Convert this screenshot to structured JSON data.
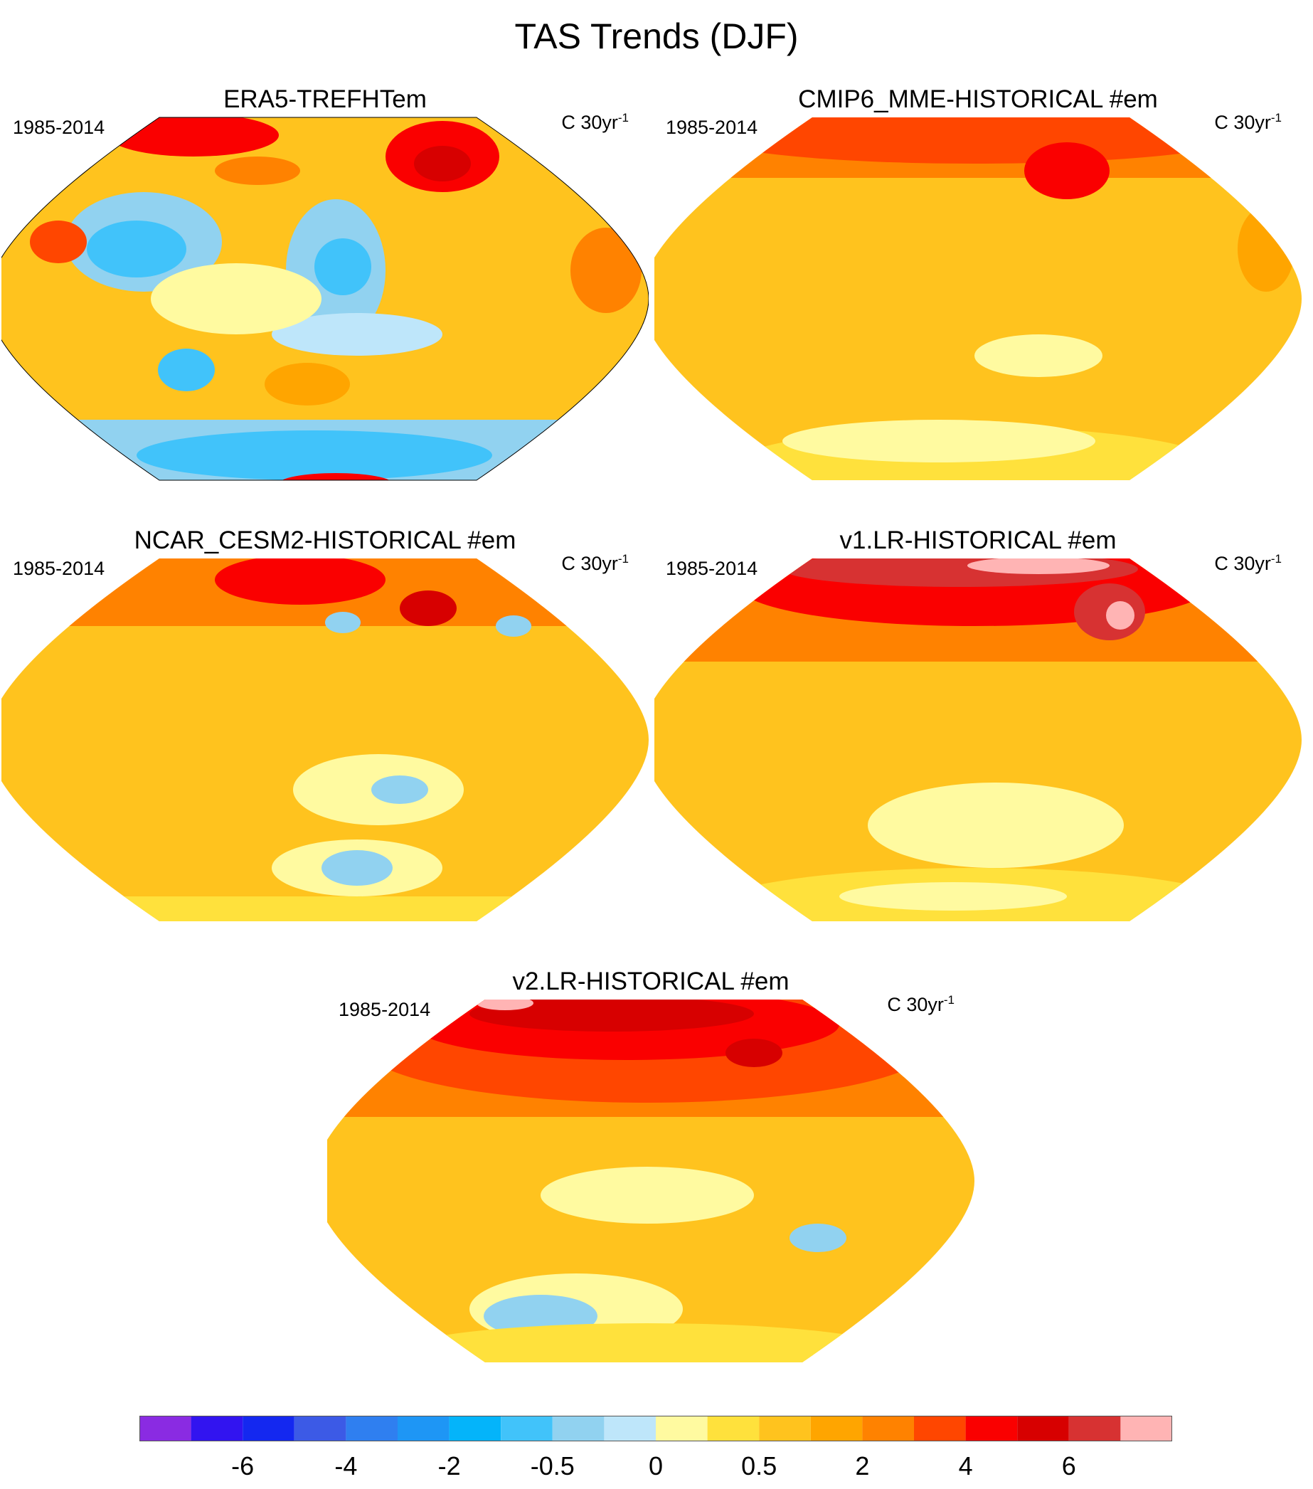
{
  "figure": {
    "title": "TAS Trends (DJF)"
  },
  "panels": [
    {
      "title": "ERA5-TREFHTem",
      "period": "1985-2014",
      "units": "C 30yr",
      "units_exp": "-1"
    },
    {
      "title": "CMIP6_MME-HISTORICAL  #em",
      "period": "1985-2014",
      "units": "C 30yr",
      "units_exp": "-1"
    },
    {
      "title": "NCAR_CESM2-HISTORICAL  #em",
      "period": "1985-2014",
      "units": "C 30yr",
      "units_exp": "-1"
    },
    {
      "title": "v1.LR-HISTORICAL  #em",
      "period": "1985-2014",
      "units": "C 30yr",
      "units_exp": "-1"
    },
    {
      "title": "v2.LR-HISTORICAL  #em",
      "period": "1985-2014",
      "units": "C 30yr",
      "units_exp": "-1"
    }
  ],
  "colorbar": {
    "colors": [
      "#8a2be2",
      "#3214f0",
      "#1428f0",
      "#3c5ae6",
      "#2f7ff0",
      "#1e96f5",
      "#04b4fa",
      "#41c3fa",
      "#91d2f0",
      "#bee6fa",
      "#fffaa0",
      "#ffe13c",
      "#ffc31e",
      "#ffa500",
      "#ff8200",
      "#ff4600",
      "#fa0000",
      "#d70000",
      "#d73232",
      "#ffb4b4"
    ],
    "tick_labels": [
      "-6",
      "-4",
      "-2",
      "-0.5",
      "0",
      "0.5",
      "2",
      "4",
      "6"
    ]
  },
  "colors": {
    "deep_red": "#d70000",
    "red": "#fa0000",
    "orange_red": "#ff4600",
    "orange": "#ff8200",
    "dark_yellow": "#ffa500",
    "yellow_orange": "#ffc31e",
    "yellow": "#ffe13c",
    "pale_yellow": "#fffaa0",
    "pale_blue": "#bee6fa",
    "light_blue": "#91d2f0",
    "blue": "#41c3fa",
    "coast": "#777777"
  }
}
